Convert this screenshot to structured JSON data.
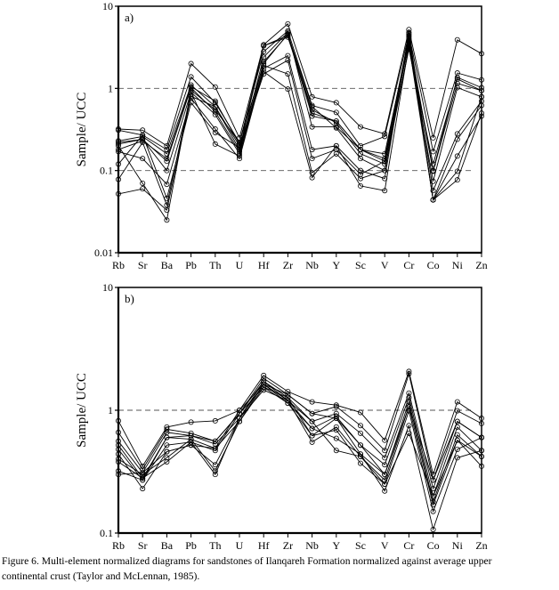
{
  "caption": {
    "line1": "Figure 6. Multi-element normalized diagrams for sandstones of Ilanqareh Formation normalized against average upper",
    "line2": "continental crust (Taylor and McLennan, 1985)."
  },
  "chart_data": [
    {
      "type": "line",
      "panel_label": "a)",
      "ylabel": "Sample/ UCC",
      "y_scale": "log",
      "ylim": [
        0.01,
        10
      ],
      "y_ticks": [
        "10",
        "1",
        "0.1",
        "0.01"
      ],
      "reference_lines": [
        1,
        0.1
      ],
      "categories": [
        "Rb",
        "Sr",
        "Ba",
        "Pb",
        "Th",
        "U",
        "Hf",
        "Zr",
        "Nb",
        "Y",
        "Sc",
        "V",
        "Cr",
        "Co",
        "Ni",
        "Zn"
      ],
      "marker": "open-circle",
      "line_color": "#000000",
      "series": [
        {
          "values": [
            0.32,
            0.31,
            0.2,
            2.0,
            1.04,
            0.25,
            3.4,
            6.1,
            0.79,
            0.67,
            0.34,
            0.28,
            5.2,
            0.25,
            3.9,
            2.65
          ]
        },
        {
          "values": [
            0.31,
            0.27,
            0.18,
            1.38,
            0.67,
            0.22,
            2.8,
            5.0,
            0.62,
            0.51,
            0.2,
            0.26,
            4.6,
            0.17,
            1.54,
            1.27
          ]
        },
        {
          "values": [
            0.23,
            0.26,
            0.16,
            1.1,
            0.6,
            0.18,
            3.3,
            4.4,
            0.46,
            0.4,
            0.18,
            0.16,
            4.0,
            0.1,
            1.36,
            1.02
          ]
        },
        {
          "values": [
            0.22,
            0.24,
            0.13,
            1.02,
            0.52,
            0.17,
            2.4,
            4.8,
            0.34,
            0.34,
            0.18,
            0.13,
            3.6,
            0.098,
            1.15,
            0.94
          ]
        },
        {
          "values": [
            0.21,
            0.24,
            0.1,
            0.9,
            0.48,
            0.16,
            2.1,
            4.5,
            0.6,
            0.33,
            0.14,
            0.1,
            3.2,
            0.074,
            1.02,
            0.79
          ]
        },
        {
          "values": [
            0.17,
            0.14,
            0.068,
            0.76,
            0.32,
            0.14,
            1.75,
            2.5,
            0.18,
            0.2,
            0.1,
            0.08,
            4.8,
            0.057,
            0.28,
            0.7
          ]
        },
        {
          "values": [
            0.12,
            0.27,
            0.046,
            0.67,
            0.29,
            0.19,
            1.5,
            2.2,
            0.14,
            0.18,
            0.09,
            0.13,
            3.8,
            0.044,
            0.24,
            0.62
          ]
        },
        {
          "values": [
            0.078,
            0.22,
            0.038,
            0.9,
            0.21,
            0.15,
            1.9,
            1.5,
            0.094,
            0.16,
            0.08,
            0.1,
            4.2,
            0.044,
            0.15,
            0.46
          ]
        },
        {
          "values": [
            0.052,
            0.06,
            0.033,
            0.8,
            0.6,
            0.2,
            1.6,
            0.98,
            0.082,
            0.2,
            0.065,
            0.057,
            3.4,
            0.044,
            0.098,
            0.79
          ]
        },
        {
          "values": [
            0.2,
            0.07,
            0.025,
            0.95,
            0.55,
            0.22,
            2.0,
            4.6,
            0.5,
            0.4,
            0.18,
            0.14,
            4.4,
            0.044,
            0.077,
            0.5
          ]
        },
        {
          "values": [
            0.18,
            0.23,
            0.14,
            1.05,
            0.7,
            0.21,
            3.3,
            4.2,
            0.55,
            0.38,
            0.16,
            0.12,
            3.0,
            0.12,
            1.3,
            0.94
          ]
        }
      ]
    },
    {
      "type": "line",
      "panel_label": "b)",
      "ylabel": "Sample/ UCC",
      "y_scale": "log",
      "ylim": [
        0.1,
        10
      ],
      "y_ticks": [
        "10",
        "1",
        "0.1"
      ],
      "reference_lines": [
        1
      ],
      "categories": [
        "Rb",
        "Sr",
        "Ba",
        "Pb",
        "Th",
        "U",
        "Hf",
        "Zr",
        "Nb",
        "Y",
        "Sc",
        "V",
        "Cr",
        "Co",
        "Ni",
        "Zn"
      ],
      "marker": "open-circle",
      "line_color": "#000000",
      "series": [
        {
          "values": [
            0.82,
            0.35,
            0.73,
            0.8,
            0.82,
            1.0,
            1.92,
            1.42,
            1.17,
            1.1,
            0.96,
            0.57,
            2.07,
            0.3,
            1.17,
            0.86
          ]
        },
        {
          "values": [
            0.66,
            0.33,
            0.7,
            0.65,
            0.56,
            0.94,
            1.82,
            1.34,
            0.94,
            1.07,
            0.75,
            0.47,
            1.98,
            0.27,
            0.99,
            0.78
          ]
        },
        {
          "values": [
            0.56,
            0.31,
            0.66,
            0.62,
            0.53,
            0.86,
            1.72,
            1.27,
            0.81,
            0.94,
            0.65,
            0.41,
            1.38,
            0.23,
            0.81,
            0.6
          ]
        },
        {
          "values": [
            0.52,
            0.28,
            0.6,
            0.58,
            0.49,
            0.81,
            1.63,
            1.2,
            0.71,
            0.89,
            0.52,
            0.36,
            1.27,
            0.2,
            0.73,
            0.47
          ]
        },
        {
          "values": [
            0.48,
            0.27,
            0.52,
            0.55,
            0.47,
            0.94,
            1.54,
            1.14,
            0.62,
            0.86,
            0.44,
            0.3,
            1.17,
            0.18,
            0.63,
            0.42
          ]
        },
        {
          "values": [
            0.44,
            0.23,
            0.46,
            0.52,
            0.36,
            0.86,
            1.46,
            1.2,
            0.55,
            0.73,
            0.42,
            0.27,
            1.07,
            0.17,
            0.57,
            0.35
          ]
        },
        {
          "values": [
            0.4,
            0.3,
            0.41,
            0.58,
            0.32,
            0.81,
            1.54,
            1.27,
            0.62,
            0.69,
            0.37,
            0.25,
            0.99,
            0.15,
            0.48,
            0.6
          ]
        },
        {
          "values": [
            0.38,
            0.28,
            0.38,
            0.55,
            0.3,
            0.86,
            1.63,
            1.14,
            0.71,
            0.59,
            0.44,
            0.22,
            0.75,
            0.107,
            0.41,
            0.47
          ]
        },
        {
          "values": [
            0.32,
            0.27,
            0.6,
            0.62,
            0.56,
            0.94,
            1.72,
            1.2,
            0.81,
            0.47,
            0.42,
            0.25,
            0.65,
            0.2,
            0.57,
            0.42
          ]
        },
        {
          "values": [
            0.3,
            0.31,
            0.46,
            0.52,
            0.49,
            1.0,
            1.63,
            1.34,
            0.94,
            0.86,
            0.52,
            0.3,
            1.07,
            0.27,
            0.81,
            0.6
          ]
        }
      ]
    }
  ]
}
